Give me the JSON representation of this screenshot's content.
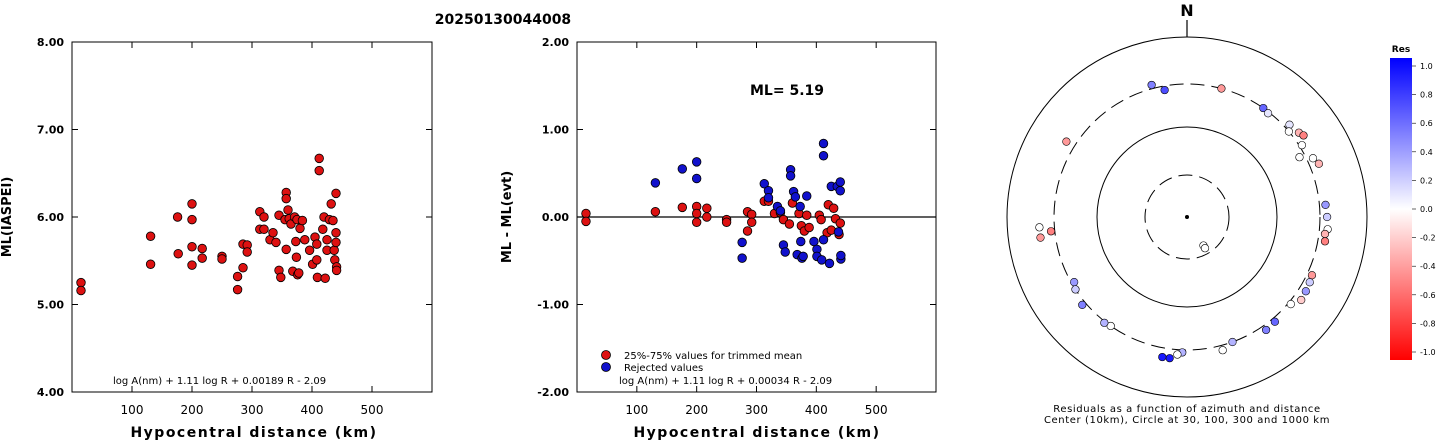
{
  "title": "20250130044008",
  "chart_data": [
    {
      "type": "scatter",
      "ylabel": "ML(IASPEI)",
      "xlabel": "Hypocentral distance (km)",
      "xlim": [
        0,
        600
      ],
      "ylim": [
        4.0,
        8.0
      ],
      "xticks": [
        "100",
        "200",
        "300",
        "400",
        "500"
      ],
      "yticks": [
        "4.00",
        "5.00",
        "6.00",
        "7.00",
        "8.00"
      ],
      "formula": "log A(nm) + 1.11 log R + 0.00189 R - 2.09",
      "color": "#dd1111",
      "points": [
        [
          15,
          5.25
        ],
        [
          15,
          5.16
        ],
        [
          131,
          5.78
        ],
        [
          131,
          5.46
        ],
        [
          176,
          6.0
        ],
        [
          177,
          5.58
        ],
        [
          200,
          6.15
        ],
        [
          200,
          5.97
        ],
        [
          200,
          5.66
        ],
        [
          200,
          5.45
        ],
        [
          217,
          5.64
        ],
        [
          217,
          5.53
        ],
        [
          250,
          5.55
        ],
        [
          250,
          5.52
        ],
        [
          276,
          5.32
        ],
        [
          276,
          5.17
        ],
        [
          285,
          5.69
        ],
        [
          285,
          5.42
        ],
        [
          292,
          5.68
        ],
        [
          292,
          5.6
        ],
        [
          313,
          6.06
        ],
        [
          313,
          5.86
        ],
        [
          320,
          6.0
        ],
        [
          320,
          5.86
        ],
        [
          330,
          5.74
        ],
        [
          335,
          5.82
        ],
        [
          340,
          5.71
        ],
        [
          345,
          6.02
        ],
        [
          345,
          5.39
        ],
        [
          348,
          5.31
        ],
        [
          355,
          5.97
        ],
        [
          357,
          6.28
        ],
        [
          357,
          6.21
        ],
        [
          357,
          5.63
        ],
        [
          360,
          6.08
        ],
        [
          362,
          5.98
        ],
        [
          365,
          5.92
        ],
        [
          368,
          5.38
        ],
        [
          371,
          6.0
        ],
        [
          373,
          5.72
        ],
        [
          374,
          5.54
        ],
        [
          375,
          5.97
        ],
        [
          376,
          5.34
        ],
        [
          378,
          5.36
        ],
        [
          380,
          5.87
        ],
        [
          384,
          5.96
        ],
        [
          388,
          5.74
        ],
        [
          396,
          5.62
        ],
        [
          401,
          5.46
        ],
        [
          405,
          5.77
        ],
        [
          408,
          5.69
        ],
        [
          408,
          5.51
        ],
        [
          409,
          5.31
        ],
        [
          412,
          6.67
        ],
        [
          412,
          6.53
        ],
        [
          418,
          5.86
        ],
        [
          420,
          6.0
        ],
        [
          422,
          5.3
        ],
        [
          425,
          5.62
        ],
        [
          425,
          5.74
        ],
        [
          429,
          5.97
        ],
        [
          432,
          6.15
        ],
        [
          435,
          5.96
        ],
        [
          437,
          5.62
        ],
        [
          438,
          5.51
        ],
        [
          440,
          6.27
        ],
        [
          440,
          5.82
        ],
        [
          440,
          5.71
        ],
        [
          441,
          5.43
        ],
        [
          441,
          5.39
        ]
      ]
    },
    {
      "type": "scatter",
      "ylabel": "ML - ML(evt)",
      "xlabel": "Hypocentral distance (km)",
      "xlim": [
        0,
        600
      ],
      "ylim": [
        -2.0,
        2.0
      ],
      "xticks": [
        "100",
        "200",
        "300",
        "400",
        "500"
      ],
      "yticks": [
        "-2.00",
        "-1.00",
        "0.00",
        "1.00",
        "2.00"
      ],
      "annotation": "ML= 5.19",
      "formula": "log A(nm) + 1.11 log R + 0.00034 R - 2.09",
      "legend": [
        "25%-75% values for trimmed mean",
        "Rejected values"
      ],
      "colors": {
        "trimmed": "#dd1111",
        "rejected": "#1111cc"
      },
      "trimmed": [
        [
          15,
          0.04
        ],
        [
          15,
          -0.05
        ],
        [
          131,
          0.06
        ],
        [
          176,
          0.11
        ],
        [
          200,
          0.12
        ],
        [
          200,
          0.04
        ],
        [
          200,
          -0.06
        ],
        [
          217,
          0.1
        ],
        [
          217,
          0.0
        ],
        [
          250,
          -0.03
        ],
        [
          250,
          -0.06
        ],
        [
          285,
          0.06
        ],
        [
          285,
          -0.16
        ],
        [
          292,
          0.03
        ],
        [
          292,
          -0.06
        ],
        [
          313,
          0.18
        ],
        [
          320,
          0.18
        ],
        [
          330,
          0.04
        ],
        [
          340,
          0.05
        ],
        [
          345,
          -0.03
        ],
        [
          355,
          -0.08
        ],
        [
          360,
          0.16
        ],
        [
          371,
          0.04
        ],
        [
          375,
          -0.1
        ],
        [
          380,
          -0.16
        ],
        [
          384,
          0.02
        ],
        [
          388,
          -0.12
        ],
        [
          405,
          0.02
        ],
        [
          408,
          -0.03
        ],
        [
          418,
          -0.18
        ],
        [
          420,
          0.14
        ],
        [
          425,
          -0.15
        ],
        [
          429,
          0.1
        ],
        [
          432,
          -0.02
        ],
        [
          440,
          -0.07
        ],
        [
          438,
          -0.2
        ]
      ],
      "rejected": [
        [
          131,
          0.39
        ],
        [
          176,
          0.55
        ],
        [
          200,
          0.63
        ],
        [
          200,
          0.44
        ],
        [
          276,
          -0.29
        ],
        [
          276,
          -0.47
        ],
        [
          313,
          0.38
        ],
        [
          320,
          0.3
        ],
        [
          320,
          0.22
        ],
        [
          335,
          0.12
        ],
        [
          340,
          0.07
        ],
        [
          345,
          -0.32
        ],
        [
          348,
          -0.4
        ],
        [
          357,
          0.54
        ],
        [
          357,
          0.47
        ],
        [
          362,
          0.29
        ],
        [
          365,
          0.23
        ],
        [
          368,
          -0.43
        ],
        [
          373,
          0.12
        ],
        [
          374,
          -0.28
        ],
        [
          376,
          -0.47
        ],
        [
          378,
          -0.45
        ],
        [
          384,
          0.24
        ],
        [
          396,
          -0.28
        ],
        [
          401,
          -0.37
        ],
        [
          401,
          -0.45
        ],
        [
          409,
          -0.49
        ],
        [
          412,
          0.84
        ],
        [
          412,
          0.7
        ],
        [
          412,
          -0.26
        ],
        [
          422,
          -0.53
        ],
        [
          425,
          0.35
        ],
        [
          435,
          0.35
        ],
        [
          437,
          -0.17
        ],
        [
          440,
          0.4
        ],
        [
          440,
          0.3
        ],
        [
          441,
          -0.48
        ],
        [
          441,
          -0.44
        ]
      ]
    },
    {
      "type": "polar-scatter",
      "north_label": "N",
      "caption_line1": "Residuals as a function of azimuth and distance",
      "caption_line2": "Center (10km), Circle at 30, 100, 300 and 1000 km",
      "colorbar_title": "Res",
      "colorbar_ticks": [
        "1.0",
        "0.8",
        "0.6",
        "0.4",
        "0.2",
        "0.0",
        "-0.2",
        "-0.4",
        "-0.6",
        "-0.8",
        "-1.0"
      ],
      "rings_km": [
        10,
        30,
        100,
        300,
        1000
      ],
      "stations": [
        {
          "az": 150,
          "dist": 12,
          "res": 0.0
        },
        {
          "az": 150,
          "dist": 13,
          "res": 0.0
        },
        {
          "az": 345,
          "dist": 330,
          "res": 0.5
        },
        {
          "az": 350,
          "dist": 270,
          "res": 0.7
        },
        {
          "az": 15,
          "dist": 300,
          "res": -0.4
        },
        {
          "az": 35,
          "dist": 300,
          "res": 0.6
        },
        {
          "az": 38,
          "dist": 290,
          "res": 0.1
        },
        {
          "az": 48,
          "dist": 340,
          "res": 0.1
        },
        {
          "az": 50,
          "dist": 300,
          "res": 0.0
        },
        {
          "az": 53,
          "dist": 360,
          "res": -0.3
        },
        {
          "az": 55,
          "dist": 380,
          "res": -0.5
        },
        {
          "az": 58,
          "dist": 320,
          "res": 0.0
        },
        {
          "az": 62,
          "dist": 260,
          "res": 0.0
        },
        {
          "az": 65,
          "dist": 350,
          "res": 0.0
        },
        {
          "az": 68,
          "dist": 380,
          "res": -0.3
        },
        {
          "az": 85,
          "dist": 350,
          "res": 0.4
        },
        {
          "az": 90,
          "dist": 360,
          "res": 0.2
        },
        {
          "az": 95,
          "dist": 370,
          "res": 0.0
        },
        {
          "az": 97,
          "dist": 350,
          "res": -0.3
        },
        {
          "az": 100,
          "dist": 360,
          "res": -0.5
        },
        {
          "az": 115,
          "dist": 340,
          "res": -0.4
        },
        {
          "az": 118,
          "dist": 350,
          "res": 0.2
        },
        {
          "az": 122,
          "dist": 360,
          "res": 0.4
        },
        {
          "az": 126,
          "dist": 370,
          "res": -0.2
        },
        {
          "az": 130,
          "dist": 320,
          "res": 0.0
        },
        {
          "az": 140,
          "dist": 330,
          "res": 0.6
        },
        {
          "az": 145,
          "dist": 340,
          "res": 0.5
        },
        {
          "az": 160,
          "dist": 300,
          "res": 0.3
        },
        {
          "az": 165,
          "dist": 340,
          "res": 0.0
        },
        {
          "az": 182,
          "dist": 320,
          "res": 0.3
        },
        {
          "az": 184,
          "dist": 340,
          "res": 0.0
        },
        {
          "az": 187,
          "dist": 380,
          "res": 0.9
        },
        {
          "az": 190,
          "dist": 380,
          "res": 0.9
        },
        {
          "az": 215,
          "dist": 300,
          "res": 0.0
        },
        {
          "az": 218,
          "dist": 310,
          "res": 0.3
        },
        {
          "az": 230,
          "dist": 330,
          "res": 0.5
        },
        {
          "az": 240,
          "dist": 280,
          "res": 0.4
        },
        {
          "az": 237,
          "dist": 300,
          "res": 0.2
        },
        {
          "az": 262,
          "dist": 440,
          "res": -0.4
        },
        {
          "az": 264,
          "dist": 330,
          "res": -0.5
        },
        {
          "az": 266,
          "dist": 440,
          "res": 0.0
        },
        {
          "az": 302,
          "dist": 380,
          "res": -0.4
        }
      ]
    }
  ]
}
